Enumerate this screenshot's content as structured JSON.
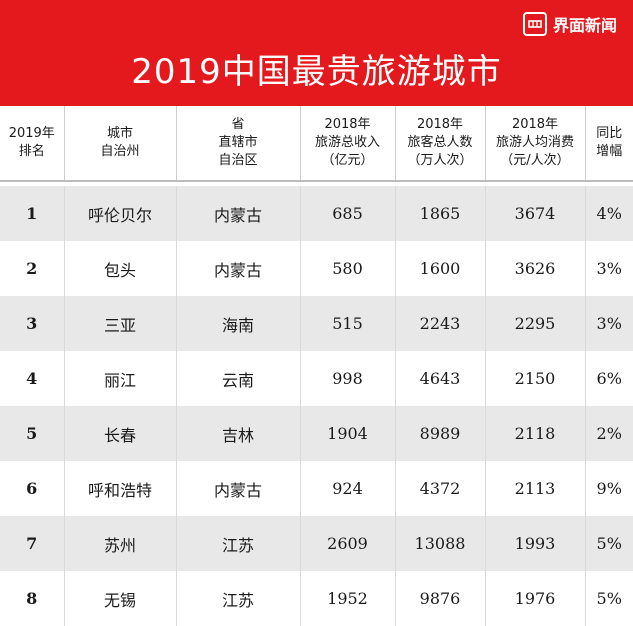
{
  "brand": {
    "name": "界面新闻",
    "icon": "jiemian-logo-icon"
  },
  "title": "2019中国最贵旅游城市",
  "headers": [
    [
      "2019年",
      "排名"
    ],
    [
      "城市",
      "自治州"
    ],
    [
      "省",
      "直辖市",
      "自治区"
    ],
    [
      "2018年",
      "旅游总收入",
      "（亿元）"
    ],
    [
      "2018年",
      "旅客总人数",
      "（万人次）"
    ],
    [
      "2018年",
      "旅游人均消费",
      "（元/人次）"
    ],
    [
      "同比",
      "增幅"
    ]
  ],
  "rows": [
    {
      "rank": "1",
      "city": "呼伦贝尔",
      "province": "内蒙古",
      "income": "685",
      "visitors": "1865",
      "per_capita": "3674",
      "growth": "4%"
    },
    {
      "rank": "2",
      "city": "包头",
      "province": "内蒙古",
      "income": "580",
      "visitors": "1600",
      "per_capita": "3626",
      "growth": "3%"
    },
    {
      "rank": "3",
      "city": "三亚",
      "province": "海南",
      "income": "515",
      "visitors": "2243",
      "per_capita": "2295",
      "growth": "3%"
    },
    {
      "rank": "4",
      "city": "丽江",
      "province": "云南",
      "income": "998",
      "visitors": "4643",
      "per_capita": "2150",
      "growth": "6%"
    },
    {
      "rank": "5",
      "city": "长春",
      "province": "吉林",
      "income": "1904",
      "visitors": "8989",
      "per_capita": "2118",
      "growth": "2%"
    },
    {
      "rank": "6",
      "city": "呼和浩特",
      "province": "内蒙古",
      "income": "924",
      "visitors": "4372",
      "per_capita": "2113",
      "growth": "9%"
    },
    {
      "rank": "7",
      "city": "苏州",
      "province": "江苏",
      "income": "2609",
      "visitors": "13088",
      "per_capita": "1993",
      "growth": "5%"
    },
    {
      "rank": "8",
      "city": "无锡",
      "province": "江苏",
      "income": "1952",
      "visitors": "9876",
      "per_capita": "1976",
      "growth": "5%"
    }
  ],
  "colors": {
    "banner": "#e3191e",
    "row_shade": "#e8e8e8",
    "text": "#1a1a1a"
  }
}
